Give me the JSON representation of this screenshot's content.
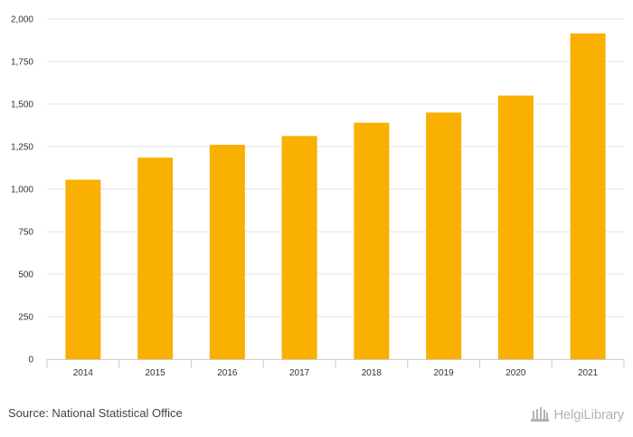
{
  "chart_data": {
    "type": "bar",
    "categories": [
      "2014",
      "2015",
      "2016",
      "2017",
      "2018",
      "2019",
      "2020",
      "2021"
    ],
    "values": [
      1055,
      1185,
      1260,
      1312,
      1390,
      1450,
      1550,
      1915
    ],
    "title": "",
    "xlabel": "",
    "ylabel": "",
    "ylim": [
      0,
      2000
    ],
    "yticks": [
      0,
      250,
      500,
      750,
      1000,
      1250,
      1500,
      1750,
      2000
    ],
    "ytick_labels": [
      "0",
      "250",
      "500",
      "750",
      "1,000",
      "1,250",
      "1,500",
      "1,750",
      "2,000"
    ],
    "grid": true,
    "legend": "none",
    "bar_color": "#F9B000"
  },
  "footer": {
    "source": "Source: National Statistical Office",
    "logo_text": "HelgiLibrary"
  },
  "colors": {
    "grid": "#e6e6e6",
    "axis": "#cccccc",
    "bar": "#F9B000",
    "logo": "#b3b3b3"
  }
}
